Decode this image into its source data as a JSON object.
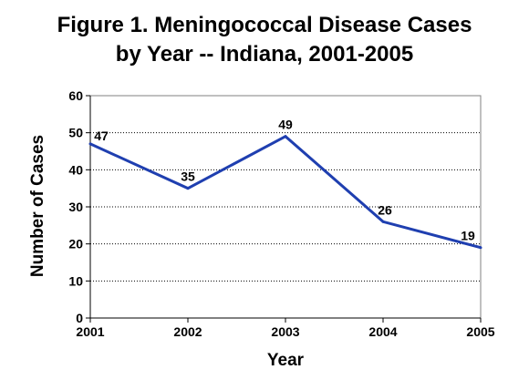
{
  "chart_data": {
    "type": "line",
    "title_line1": "Figure 1. Meningococcal Disease Cases",
    "title_line2": "by Year -- Indiana, 2001-2005",
    "xlabel": "Year",
    "ylabel": "Number of Cases",
    "categories": [
      "2001",
      "2002",
      "2003",
      "2004",
      "2005"
    ],
    "series": [
      {
        "values": [
          47,
          35,
          49,
          26,
          19
        ],
        "color": "#1f3fb0"
      }
    ],
    "data_labels": [
      "47",
      "35",
      "49",
      "26",
      "19"
    ],
    "ylim": [
      0,
      60
    ],
    "yticks": [
      0,
      10,
      20,
      30,
      40,
      50,
      60
    ],
    "ytick_labels": [
      "0",
      "10",
      "20",
      "30",
      "40",
      "50",
      "60"
    ],
    "grid": "horizontal dotted",
    "legend": "none"
  }
}
